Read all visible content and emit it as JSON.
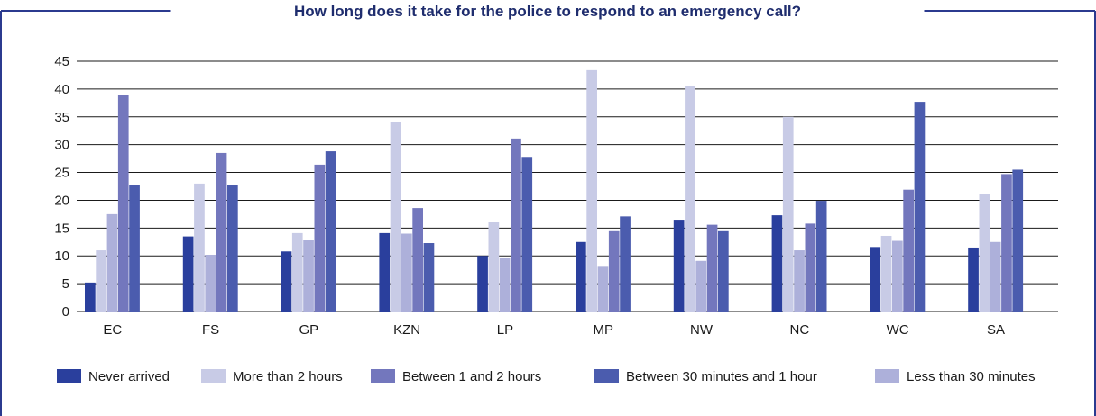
{
  "chart_data": {
    "type": "bar",
    "title": "How long does it take for the police to respond to an emergency call?",
    "categories": [
      "EC",
      "FS",
      "GP",
      "KZN",
      "LP",
      "MP",
      "NW",
      "NC",
      "WC",
      "SA"
    ],
    "ylim": [
      0,
      45
    ],
    "yticks": [
      0,
      5,
      10,
      15,
      20,
      25,
      30,
      35,
      40,
      45
    ],
    "grid": true,
    "legend_position": "bottom",
    "series": [
      {
        "name": "Never arrived",
        "color": "#2a3f9d",
        "values": [
          5.2,
          13.5,
          10.8,
          14.1,
          10.0,
          12.5,
          16.5,
          17.3,
          11.6,
          11.5
        ]
      },
      {
        "name": "More than 2 hours",
        "color": "#c8cbe6",
        "values": [
          11.0,
          23.0,
          14.1,
          34.0,
          16.1,
          43.4,
          40.5,
          35.0,
          13.6,
          21.1
        ]
      },
      {
        "name": "Between 1 and 2 hours",
        "color": "#7377bd",
        "values": [
          38.9,
          28.5,
          26.4,
          18.6,
          31.1,
          14.6,
          15.6,
          15.8,
          21.9,
          24.7
        ]
      },
      {
        "name": "Between 30 minutes and 1 hour",
        "color": "#4b5cae",
        "values": [
          22.8,
          22.8,
          28.8,
          12.3,
          27.8,
          17.1,
          14.6,
          19.9,
          37.7,
          25.5
        ]
      },
      {
        "name": "Less than 30 minutes",
        "color": "#adb0da",
        "values": [
          17.5,
          10.2,
          12.9,
          14.0,
          9.7,
          8.2,
          9.1,
          11.0,
          12.7,
          12.5
        ]
      }
    ],
    "order_drawn": [
      0,
      1,
      4,
      2,
      3
    ]
  }
}
